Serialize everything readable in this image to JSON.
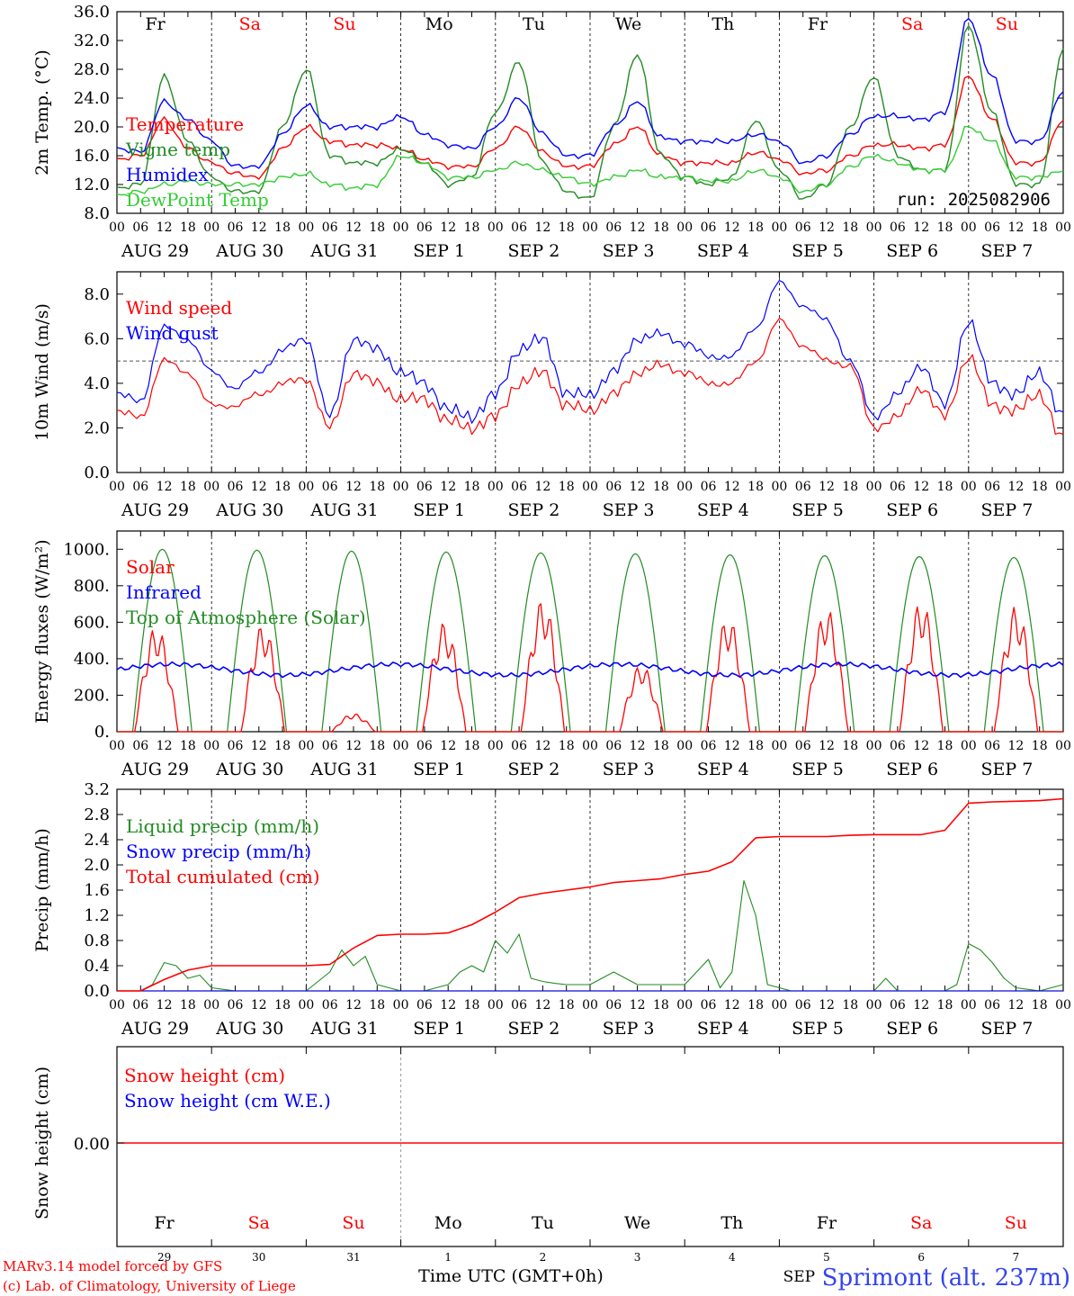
{
  "colors": {
    "red": "#ff0000",
    "green": "#228b22",
    "blue": "#0000ff",
    "lime": "#33cc33",
    "grey": "#555555",
    "black": "#000000",
    "title": "#3344ee"
  },
  "x_axis": {
    "hour_ticks": [
      "00",
      "06",
      "12",
      "18"
    ],
    "last_hour_tick": "00",
    "dates": [
      "AUG 29",
      "AUG 30",
      "AUG 31",
      "SEP  1",
      "SEP  2",
      "SEP  3",
      "SEP  4",
      "SEP  5",
      "SEP  6",
      "SEP  7"
    ],
    "weekdays": [
      "Fr",
      "Sa",
      "Su",
      "Mo",
      "Tu",
      "We",
      "Th",
      "Fr",
      "Sa",
      "Su"
    ],
    "weekend_flags": [
      false,
      true,
      true,
      false,
      false,
      false,
      false,
      false,
      true,
      true
    ],
    "day_numbers": [
      "29",
      "30",
      "31",
      "1",
      "2",
      "3",
      "4",
      "5",
      "6",
      "7"
    ],
    "month_label": "SEP",
    "xlabel": "Time UTC (GMT+0h)"
  },
  "footer": {
    "model_line": "MARv3.14 model forced by GFS",
    "credit_line": "(c) Lab. of Climatology, University of Liege",
    "station": "Sprimont (alt. 237m)"
  },
  "chart_data": [
    {
      "type": "line",
      "ylabel": "2m Temp. (°C)",
      "ylim": [
        8,
        36
      ],
      "yticks": [
        "8.0",
        "12.0",
        "16.0",
        "20.0",
        "24.0",
        "28.0",
        "32.0",
        "36.0"
      ],
      "ytick_values": [
        8,
        12,
        16,
        20,
        24,
        28,
        32,
        36
      ],
      "run_label": "run: 2025082906",
      "x_hours": [
        0,
        6,
        12,
        18,
        24,
        30,
        36,
        42,
        48,
        54,
        60,
        66,
        72,
        78,
        84,
        90,
        96,
        102,
        108,
        114,
        120,
        126,
        132,
        138,
        144,
        150,
        156,
        162,
        168,
        174,
        180,
        186,
        192,
        198,
        204,
        210,
        216,
        222,
        228,
        234,
        240
      ],
      "series": [
        {
          "name": "Temperature",
          "color": "red",
          "values": [
            15.5,
            16,
            21,
            17,
            15,
            13.5,
            13,
            17,
            20,
            18,
            17.5,
            17.5,
            17,
            15.5,
            14.5,
            14.5,
            17,
            20,
            16.5,
            14.5,
            14.5,
            17.5,
            20,
            16,
            15,
            15,
            15,
            16.5,
            15.5,
            13.5,
            14,
            16,
            17.5,
            17.5,
            17,
            17.5,
            27,
            21,
            15,
            15,
            21
          ]
        },
        {
          "name": "Vigne temp",
          "color": "green",
          "values": [
            11.5,
            12,
            27,
            18,
            13,
            11,
            11,
            20,
            28,
            16,
            15,
            15,
            17,
            15,
            12,
            13,
            22,
            29,
            15,
            11,
            10,
            20,
            30,
            16,
            13,
            12,
            13,
            21,
            14,
            10,
            12,
            20,
            27,
            16,
            14,
            14,
            34,
            22,
            12,
            12,
            31
          ]
        },
        {
          "name": "Humidex",
          "color": "blue",
          "values": [
            17,
            16.5,
            23.5,
            21,
            18,
            14.5,
            14.5,
            19,
            23,
            20,
            20,
            20,
            21.5,
            19,
            17.5,
            17,
            20,
            24,
            19,
            16,
            16,
            20,
            23.5,
            18.5,
            18,
            18,
            18,
            19,
            18,
            15,
            16,
            19,
            21.5,
            21.5,
            21,
            22,
            35,
            27,
            18,
            18,
            25
          ]
        },
        {
          "name": "DewPoint Temp",
          "color": "lime",
          "values": [
            10.5,
            11,
            12,
            12.5,
            12,
            12,
            12,
            13,
            13.5,
            12,
            11.5,
            12,
            16,
            15,
            13,
            13,
            14,
            15,
            14,
            13,
            12,
            13,
            14,
            13,
            13,
            12.5,
            12.5,
            14,
            13,
            11,
            12,
            14.5,
            16,
            15,
            14,
            14,
            20,
            18,
            13,
            13,
            14
          ]
        }
      ]
    },
    {
      "type": "line",
      "ylabel": "10m Wind (m/s)",
      "ylim": [
        0,
        9
      ],
      "yticks": [
        "0.0",
        "2.0",
        "4.0",
        "6.0",
        "8.0"
      ],
      "ytick_values": [
        0,
        2,
        4,
        6,
        8
      ],
      "reference_line": 5,
      "x_hours": [
        0,
        6,
        12,
        18,
        24,
        30,
        36,
        42,
        48,
        54,
        60,
        66,
        72,
        78,
        84,
        90,
        96,
        102,
        108,
        114,
        120,
        126,
        132,
        138,
        144,
        150,
        156,
        162,
        168,
        174,
        180,
        186,
        192,
        198,
        204,
        210,
        216,
        222,
        228,
        234,
        240
      ],
      "series": [
        {
          "name": "Wind speed",
          "color": "red",
          "values": [
            2.7,
            2.5,
            5.0,
            4.5,
            3.0,
            3.0,
            3.5,
            4.0,
            4.2,
            2.0,
            4.5,
            4.0,
            3.3,
            3.3,
            2.3,
            2.0,
            2.5,
            4.0,
            4.5,
            3.0,
            2.8,
            3.5,
            4.5,
            4.8,
            4.5,
            4.0,
            4.0,
            5.0,
            6.8,
            5.7,
            5.0,
            4.8,
            2.0,
            2.5,
            3.8,
            2.5,
            5.2,
            3.0,
            2.8,
            3.5,
            1.5
          ]
        },
        {
          "name": "Wind gust",
          "color": "blue",
          "values": [
            3.5,
            3.2,
            6.5,
            6.0,
            4.5,
            3.8,
            4.5,
            5.5,
            6.0,
            2.5,
            6.0,
            5.5,
            4.5,
            4.0,
            2.8,
            2.5,
            3.5,
            5.5,
            6.0,
            3.5,
            3.5,
            4.5,
            6.0,
            6.2,
            5.8,
            5.2,
            5.2,
            6.5,
            8.5,
            7.5,
            6.8,
            5.0,
            2.5,
            3.5,
            4.8,
            3.0,
            6.8,
            4.0,
            3.5,
            4.5,
            2.5
          ]
        }
      ]
    },
    {
      "type": "line",
      "ylabel": "Energy fluxes (W/m²)",
      "ylim": [
        0,
        1100
      ],
      "yticks": [
        "0.",
        "200.",
        "400.",
        "600.",
        "800.",
        "1000."
      ],
      "ytick_values": [
        0,
        200,
        400,
        600,
        800,
        1000
      ],
      "series": [
        {
          "name": "Solar",
          "color": "red",
          "daily_peak": [
            580,
            590,
            100,
            600,
            730,
            370,
            630,
            680,
            720,
            690
          ],
          "peak_hour": [
            10,
            13,
            12,
            11,
            12,
            13,
            11,
            12,
            12,
            12
          ]
        },
        {
          "name": "Infrared",
          "color": "blue",
          "mean": 340,
          "amplitude": 30
        },
        {
          "name": "Top of Atmosphere (Solar)",
          "color": "green",
          "daily_peak": [
            1000,
            995,
            990,
            985,
            980,
            975,
            970,
            965,
            960,
            955
          ],
          "sunrise_hour": 4,
          "sunset_hour": 19
        }
      ]
    },
    {
      "type": "line",
      "ylabel": "Precip (mm/h)",
      "ylim": [
        0,
        3.2
      ],
      "yticks": [
        "0.0",
        "0.4",
        "0.8",
        "1.2",
        "1.6",
        "2.0",
        "2.4",
        "2.8",
        "3.2"
      ],
      "ytick_values": [
        0,
        0.4,
        0.8,
        1.2,
        1.6,
        2.0,
        2.4,
        2.8,
        3.2
      ],
      "series": [
        {
          "name": "Liquid precip (mm/h)",
          "color": "green",
          "x_hours": [
            0,
            6,
            9,
            12,
            15,
            18,
            21,
            24,
            30,
            48,
            54,
            57,
            60,
            63,
            66,
            72,
            78,
            84,
            87,
            90,
            93,
            96,
            99,
            102,
            105,
            108,
            111,
            114,
            120,
            126,
            132,
            138,
            144,
            150,
            153,
            156,
            159,
            162,
            165,
            168,
            171,
            174,
            180,
            186,
            192,
            195,
            198,
            204,
            210,
            213,
            216,
            219,
            222,
            225,
            228,
            234,
            240
          ],
          "values": [
            0,
            0,
            0.1,
            0.45,
            0.4,
            0.2,
            0.25,
            0.05,
            0,
            0,
            0.3,
            0.65,
            0.4,
            0.55,
            0.1,
            0,
            0,
            0.1,
            0.3,
            0.4,
            0.3,
            0.8,
            0.6,
            0.9,
            0.2,
            0.15,
            0.12,
            0.1,
            0.1,
            0.3,
            0.1,
            0.1,
            0.1,
            0.5,
            0.05,
            0.3,
            1.75,
            1.2,
            0.1,
            0.05,
            0,
            0,
            0,
            0,
            0,
            0.2,
            0,
            0,
            0,
            0.1,
            0.75,
            0.65,
            0.45,
            0.2,
            0.05,
            0,
            0.1
          ]
        },
        {
          "name": "Snow precip (mm/h)",
          "color": "blue",
          "x_hours": [
            0,
            240
          ],
          "values": [
            0,
            0
          ]
        },
        {
          "name": "Total cumulated (cm)",
          "color": "red",
          "x_hours": [
            0,
            6,
            12,
            18,
            24,
            30,
            36,
            42,
            48,
            54,
            60,
            66,
            72,
            78,
            84,
            90,
            96,
            102,
            108,
            114,
            120,
            126,
            132,
            138,
            144,
            150,
            156,
            162,
            168,
            174,
            180,
            186,
            192,
            198,
            204,
            210,
            216,
            222,
            228,
            234,
            240
          ],
          "values": [
            0,
            0,
            0.18,
            0.33,
            0.4,
            0.4,
            0.4,
            0.4,
            0.4,
            0.42,
            0.68,
            0.88,
            0.9,
            0.9,
            0.92,
            1.05,
            1.25,
            1.48,
            1.55,
            1.6,
            1.65,
            1.72,
            1.75,
            1.78,
            1.85,
            1.9,
            2.05,
            2.43,
            2.45,
            2.45,
            2.45,
            2.47,
            2.48,
            2.48,
            2.48,
            2.55,
            2.98,
            3.0,
            3.01,
            3.02,
            3.05
          ]
        }
      ]
    },
    {
      "type": "line",
      "ylabel": "Snow height (cm)",
      "ytick_label": "0.00",
      "series": [
        {
          "name": "Snow height (cm)",
          "color": "red",
          "x_hours": [
            0,
            240
          ],
          "values": [
            0,
            0
          ]
        },
        {
          "name": "Snow height (cm W.E.)",
          "color": "blue",
          "x_hours": [
            0,
            240
          ],
          "values": [
            0,
            0
          ]
        }
      ]
    }
  ]
}
